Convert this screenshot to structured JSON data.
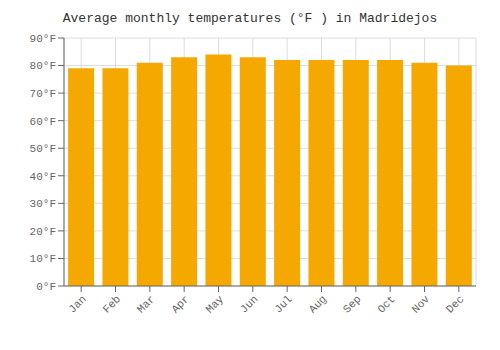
{
  "chart_data": {
    "type": "bar",
    "title": "Average monthly temperatures (°F ) in Madridejos",
    "categories": [
      "Jan",
      "Feb",
      "Mar",
      "Apr",
      "May",
      "Jun",
      "Jul",
      "Aug",
      "Sep",
      "Oct",
      "Nov",
      "Dec"
    ],
    "values": [
      79,
      79,
      81,
      83,
      84,
      83,
      82,
      82,
      82,
      82,
      81,
      80
    ],
    "color": "#F5A800",
    "ylim": [
      0,
      90
    ],
    "yticks": [
      {
        "value": 0,
        "label": "0°F"
      },
      {
        "value": 10,
        "label": "10°F"
      },
      {
        "value": 20,
        "label": "20°F"
      },
      {
        "value": 30,
        "label": "30°F"
      },
      {
        "value": 40,
        "label": "40°F"
      },
      {
        "value": 50,
        "label": "50°F"
      },
      {
        "value": 60,
        "label": "60°F"
      },
      {
        "value": 70,
        "label": "70°F"
      },
      {
        "value": 80,
        "label": "80°F"
      },
      {
        "value": 90,
        "label": "90°F"
      }
    ],
    "grid": true
  }
}
